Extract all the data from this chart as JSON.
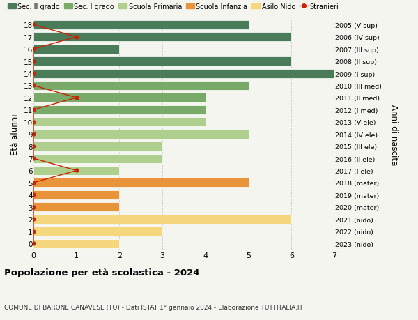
{
  "ages": [
    18,
    17,
    16,
    15,
    14,
    13,
    12,
    11,
    10,
    9,
    8,
    7,
    6,
    5,
    4,
    3,
    2,
    1,
    0
  ],
  "right_labels": [
    "2005 (V sup)",
    "2006 (IV sup)",
    "2007 (III sup)",
    "2008 (II sup)",
    "2009 (I sup)",
    "2010 (III med)",
    "2011 (II med)",
    "2012 (I med)",
    "2013 (V ele)",
    "2014 (IV ele)",
    "2015 (III ele)",
    "2016 (II ele)",
    "2017 (I ele)",
    "2018 (mater)",
    "2019 (mater)",
    "2020 (mater)",
    "2021 (nido)",
    "2022 (nido)",
    "2023 (nido)"
  ],
  "bar_values": [
    5,
    6,
    2,
    6,
    7,
    5,
    4,
    4,
    4,
    5,
    3,
    3,
    2,
    5,
    2,
    2,
    6,
    3,
    2
  ],
  "bar_colors": [
    "#4a7c59",
    "#4a7c59",
    "#4a7c59",
    "#4a7c59",
    "#4a7c59",
    "#7aaa6a",
    "#7aaa6a",
    "#7aaa6a",
    "#aecf8e",
    "#aecf8e",
    "#aecf8e",
    "#aecf8e",
    "#aecf8e",
    "#e8943a",
    "#e8943a",
    "#e8943a",
    "#f5d87e",
    "#f5d87e",
    "#f5d87e"
  ],
  "stranieri_values": [
    0,
    1,
    0,
    0,
    0,
    0,
    1,
    0,
    0,
    0,
    0,
    0,
    1,
    0,
    0,
    0,
    0,
    0,
    0
  ],
  "stranieri_color": "#cc2200",
  "title": "Popolazione per età scolastica - 2024",
  "subtitle": "COMUNE DI BARONE CANAVESE (TO) - Dati ISTAT 1° gennaio 2024 - Elaborazione TUTTITALIA.IT",
  "ylabel": "Età alunni",
  "right_ylabel": "Anni di nascita",
  "legend_labels": [
    "Sec. II grado",
    "Sec. I grado",
    "Scuola Primaria",
    "Scuola Infanzia",
    "Asilo Nido",
    "Stranieri"
  ],
  "legend_colors": [
    "#4a7c59",
    "#7aaa6a",
    "#aecf8e",
    "#e8943a",
    "#f5d87e",
    "#cc2200"
  ],
  "xlim": [
    0,
    7
  ],
  "xticks": [
    0,
    1,
    2,
    3,
    4,
    5,
    6,
    7
  ],
  "grid_color": "#cccccc",
  "bg_color": "#f5f5f0",
  "bar_height": 0.75,
  "ylim_min": -0.5,
  "ylim_max": 18.5
}
